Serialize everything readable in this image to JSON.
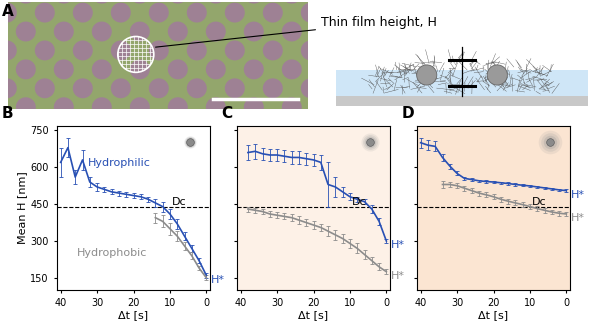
{
  "figure": {
    "label": "A",
    "annotation": "Thin film height, H"
  },
  "chart_data": [
    {
      "type": "line",
      "title": "B",
      "x_label": "Δt [s]",
      "y_label": "Mean H [nm]",
      "x": [
        40,
        38,
        36,
        34,
        32,
        30,
        28,
        26,
        24,
        22,
        20,
        18,
        16,
        14,
        12,
        10,
        8,
        6,
        4,
        2,
        0
      ],
      "xlim": [
        41,
        -1
      ],
      "xticks": [
        40,
        30,
        20,
        10,
        0
      ],
      "ylim": [
        100,
        770
      ],
      "yticks": [
        150,
        300,
        450,
        600,
        750
      ],
      "threshold": {
        "value": 440,
        "label": "Dc",
        "line_style": "dashed"
      },
      "series": [
        {
          "name": "Hydrophilic",
          "color": "#2850b4",
          "end_label": "H*",
          "values": [
            620,
            680,
            560,
            630,
            540,
            520,
            510,
            500,
            495,
            490,
            485,
            480,
            470,
            455,
            440,
            410,
            370,
            320,
            270,
            220,
            160
          ],
          "error": [
            60,
            40,
            30,
            40,
            20,
            15,
            10,
            10,
            10,
            10,
            10,
            10,
            10,
            15,
            20,
            20,
            20,
            15,
            15,
            10,
            10
          ]
        },
        {
          "name": "Hydrophobic",
          "color": "#8c8c8c",
          "values": [
            null,
            null,
            null,
            null,
            null,
            null,
            null,
            null,
            null,
            null,
            null,
            null,
            null,
            395,
            380,
            350,
            320,
            280,
            240,
            190,
            150
          ],
          "error": [
            null,
            null,
            null,
            null,
            null,
            null,
            null,
            null,
            null,
            null,
            null,
            null,
            null,
            20,
            25,
            25,
            20,
            15,
            15,
            10,
            10
          ]
        }
      ]
    },
    {
      "type": "line",
      "title": "C",
      "x_label": "Δt [s]",
      "tick_labels": "x",
      "x": [
        40,
        38,
        36,
        34,
        32,
        30,
        28,
        26,
        24,
        22,
        20,
        18,
        16,
        14,
        12,
        10,
        8,
        6,
        4,
        2,
        0
      ],
      "xlim": [
        41,
        -1
      ],
      "xticks": [
        40,
        30,
        20,
        10,
        0
      ],
      "ylim": [
        100,
        770
      ],
      "yticks": [
        150,
        300,
        450,
        600,
        750
      ],
      "threshold": {
        "value": 440,
        "label": "Dc",
        "line_style": "dashed"
      },
      "series": [
        {
          "color": "#2850b4",
          "end_label": "H*",
          "values": [
            null,
            660,
            665,
            655,
            650,
            650,
            645,
            640,
            640,
            635,
            630,
            620,
            530,
            520,
            500,
            480,
            470,
            460,
            430,
            380,
            300
          ],
          "error": [
            null,
            30,
            30,
            25,
            25,
            25,
            25,
            25,
            25,
            25,
            25,
            30,
            90,
            40,
            20,
            15,
            10,
            10,
            15,
            15,
            10
          ]
        },
        {
          "color": "#8c8c8c",
          "end_label": "H*",
          "values": [
            null,
            430,
            425,
            420,
            410,
            405,
            400,
            395,
            385,
            375,
            365,
            355,
            340,
            325,
            310,
            290,
            270,
            245,
            220,
            195,
            175
          ],
          "error": [
            null,
            10,
            10,
            10,
            12,
            12,
            12,
            15,
            15,
            15,
            15,
            15,
            20,
            20,
            20,
            20,
            20,
            20,
            15,
            15,
            10
          ]
        }
      ]
    },
    {
      "type": "line",
      "title": "D",
      "x_label": "Δt [s]",
      "tick_labels": "x",
      "x": [
        40,
        38,
        36,
        34,
        32,
        30,
        28,
        26,
        24,
        22,
        20,
        18,
        16,
        14,
        12,
        10,
        8,
        6,
        4,
        2,
        0
      ],
      "xlim": [
        41,
        -1
      ],
      "xticks": [
        40,
        30,
        20,
        10,
        0
      ],
      "ylim": [
        100,
        770
      ],
      "yticks": [
        150,
        300,
        450,
        600,
        750
      ],
      "threshold": {
        "value": 440,
        "label": "Dc",
        "line_style": "dashed"
      },
      "series": [
        {
          "color": "#2850b4",
          "end_label": "H*",
          "values": [
            700,
            690,
            685,
            640,
            605,
            575,
            555,
            550,
            545,
            542,
            540,
            537,
            534,
            530,
            527,
            524,
            520,
            516,
            512,
            508,
            505
          ],
          "error": [
            20,
            20,
            20,
            15,
            10,
            8,
            6,
            5,
            5,
            5,
            5,
            5,
            5,
            5,
            5,
            5,
            5,
            5,
            5,
            5,
            5
          ]
        },
        {
          "color": "#8c8c8c",
          "end_label": "H*",
          "values": [
            null,
            null,
            null,
            530,
            530,
            525,
            515,
            505,
            495,
            488,
            480,
            470,
            462,
            455,
            448,
            440,
            432,
            425,
            418,
            413,
            410
          ],
          "error": [
            null,
            null,
            null,
            15,
            10,
            10,
            10,
            10,
            10,
            10,
            10,
            10,
            10,
            10,
            10,
            10,
            10,
            10,
            10,
            10,
            10
          ]
        }
      ]
    }
  ]
}
